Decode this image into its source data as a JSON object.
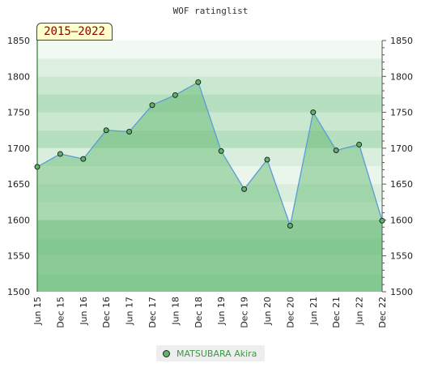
{
  "chart_data": {
    "type": "area",
    "title": "WOF ratinglist",
    "period_label": "2015–2022",
    "categories": [
      "Jun 15",
      "Dec 15",
      "Jun 16",
      "Dec 16",
      "Jun 17",
      "Dec 17",
      "Jun 18",
      "Dec 18",
      "Jun 19",
      "Dec 19",
      "Jun 20",
      "Dec 20",
      "Jun 21",
      "Dec 21",
      "Jun 22",
      "Dec 22"
    ],
    "series": [
      {
        "name": "MATSUBARA Akira",
        "values": [
          1674,
          1692,
          1685,
          1725,
          1723,
          1760,
          1774,
          1792,
          1696,
          1643,
          1684,
          1592,
          1750,
          1697,
          1705,
          1599
        ]
      }
    ],
    "ylim": [
      1500,
      1850
    ],
    "yticks": [
      1500,
      1550,
      1600,
      1650,
      1700,
      1750,
      1800,
      1850
    ],
    "legend_position": "bottom",
    "colors": {
      "line": "#5b9bd5",
      "fill": "#5cb56a",
      "marker": "#5cb56a"
    }
  }
}
